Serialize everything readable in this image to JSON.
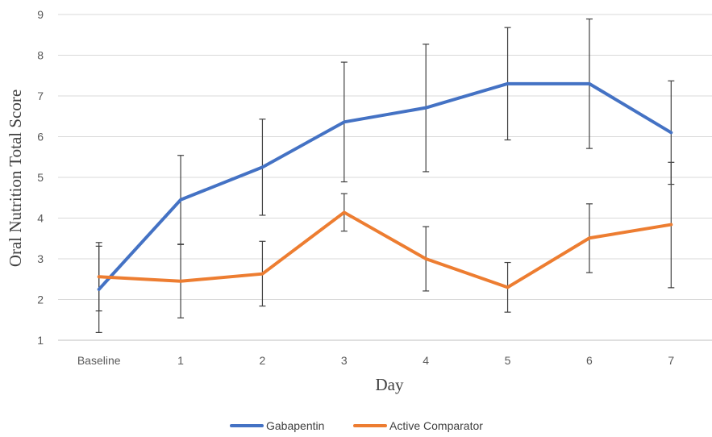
{
  "chart_data": {
    "type": "line",
    "title": "",
    "xlabel": "Day",
    "ylabel": "Oral Nutrition Total Score",
    "categories": [
      "Baseline",
      "1",
      "2",
      "3",
      "4",
      "5",
      "6",
      "7"
    ],
    "ylim": [
      1,
      9
    ],
    "yticks": [
      1,
      2,
      3,
      4,
      5,
      6,
      7,
      8,
      9
    ],
    "grid": true,
    "legend": "bottom",
    "series": [
      {
        "name": "Gabapentin",
        "color": "#4472c4",
        "values": [
          2.25,
          4.45,
          5.25,
          6.36,
          6.71,
          7.3,
          7.3,
          6.1
        ],
        "error_low": [
          1.19,
          3.36,
          4.07,
          4.89,
          5.14,
          5.92,
          5.71,
          4.83
        ],
        "error_high": [
          3.31,
          5.54,
          6.43,
          7.83,
          8.27,
          8.68,
          8.89,
          7.37
        ]
      },
      {
        "name": "Active Comparator",
        "color": "#ed7d31",
        "values": [
          2.56,
          2.45,
          2.63,
          4.14,
          3.0,
          2.3,
          3.51,
          3.84
        ],
        "error_low": [
          1.72,
          1.55,
          1.84,
          3.68,
          2.21,
          1.69,
          2.66,
          2.29
        ],
        "error_high": [
          3.4,
          3.35,
          3.43,
          4.6,
          3.79,
          2.91,
          4.35,
          5.37
        ]
      }
    ]
  }
}
